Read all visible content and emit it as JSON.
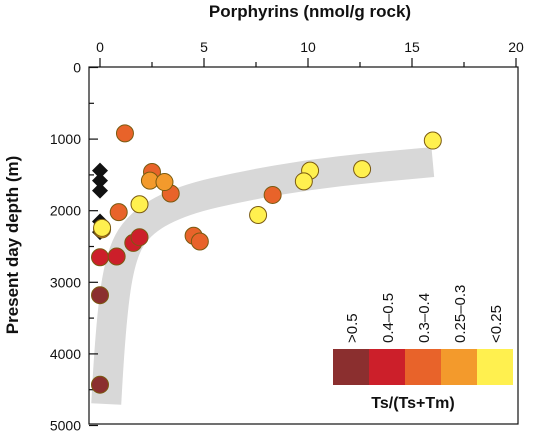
{
  "chart_data": {
    "type": "scatter",
    "xlabel": "Porphyrins (nmol/g rock)",
    "ylabel": "Present day depth (m)",
    "xlim": [
      0,
      20
    ],
    "ylim": [
      0,
      5000
    ],
    "x_ticks": [
      "0",
      "5",
      "10",
      "15",
      "20"
    ],
    "y_ticks": [
      "0",
      "1000",
      "2000",
      "3000",
      "4000",
      "5000"
    ],
    "x_axis_position": "top",
    "y_axis_inverted": true,
    "grid": false,
    "legend": {
      "title": "Ts/(Ts+Tm)",
      "placement": "bottom-right",
      "entries": [
        {
          "label": ">0.5",
          "color": "#8b2f2f"
        },
        {
          "label": "0.4–0.5",
          "color": "#cc1f2a"
        },
        {
          "label": "0.3–0.4",
          "color": "#e8632a"
        },
        {
          "label": "0.25–0.3",
          "color": "#f39a2c"
        },
        {
          "label": "<0.25",
          "color": "#fff04f"
        }
      ]
    },
    "trend_band": {
      "description_color": "#d8d8d8",
      "points": [
        [
          0.3,
          4700
        ],
        [
          0.5,
          3600
        ],
        [
          1.0,
          2600
        ],
        [
          2.0,
          2150
        ],
        [
          4.0,
          1850
        ],
        [
          7.0,
          1650
        ],
        [
          10.0,
          1500
        ],
        [
          13.0,
          1400
        ],
        [
          16.0,
          1320
        ]
      ]
    },
    "diamond_points": {
      "color": "#111111",
      "points": [
        [
          0,
          1440
        ],
        [
          0,
          1580
        ],
        [
          0,
          1720
        ],
        [
          0,
          2150
        ],
        [
          0,
          2300
        ]
      ]
    },
    "series": [
      {
        "color": "#8b2f2f",
        "points": [
          [
            0,
            3180
          ],
          [
            0,
            4430
          ]
        ]
      },
      {
        "color": "#cc1f2a",
        "points": [
          [
            0,
            2650
          ],
          [
            0.8,
            2640
          ],
          [
            1.6,
            2450
          ],
          [
            1.9,
            2370
          ]
        ]
      },
      {
        "color": "#e8632a",
        "points": [
          [
            1.2,
            920
          ],
          [
            0.9,
            2020
          ],
          [
            2.5,
            1460
          ],
          [
            3.4,
            1760
          ],
          [
            4.5,
            2350
          ],
          [
            4.8,
            2430
          ],
          [
            8.3,
            1780
          ]
        ]
      },
      {
        "color": "#f39a2c",
        "points": [
          [
            2.4,
            1580
          ],
          [
            3.1,
            1600
          ],
          [
            0.1,
            2260
          ]
        ]
      },
      {
        "color": "#fff04f",
        "points": [
          [
            16.0,
            1020
          ],
          [
            12.6,
            1420
          ],
          [
            10.1,
            1440
          ],
          [
            9.8,
            1590
          ],
          [
            7.6,
            2060
          ],
          [
            1.9,
            1910
          ],
          [
            0.1,
            2240
          ]
        ]
      }
    ]
  }
}
